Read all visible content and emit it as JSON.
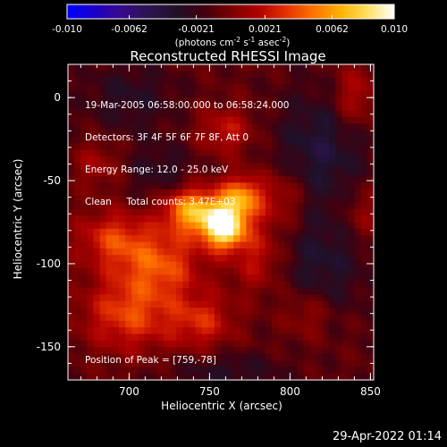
{
  "chart_data": {
    "type": "heatmap",
    "title": "Reconstructed RHESSI Image",
    "xlabel": "Heliocentric X (arcsec)",
    "ylabel": "Heliocentric Y (arcsec)",
    "xlim": [
      662,
      852
    ],
    "ylim": [
      -170,
      20
    ],
    "x_ticks": [
      700,
      750,
      800,
      850
    ],
    "y_ticks": [
      0,
      -50,
      -100,
      -150
    ],
    "peak": [
      759,
      -78
    ],
    "colorbar": {
      "label_html": "(photons cm<sup>-2</sup> s<sup>-1</sup> asec<sup>-2</sup>)",
      "min": -0.01,
      "max": 0.01,
      "ticks": [
        "-0.010",
        "-0.0062",
        "-0.0021",
        "0.0021",
        "0.0062",
        "0.010"
      ],
      "colors": [
        "#0000ff",
        "#1a00c8",
        "#3a0a8a",
        "#2a1550",
        "#201028",
        "#400010",
        "#7a0000",
        "#b00000",
        "#e33000",
        "#ff7000",
        "#ffb000",
        "#ffe060",
        "#ffffff"
      ]
    },
    "annotations": {
      "line1": "19-Mar-2005 06:58:00.000 to 06:58:24.000",
      "line2": "Detectors: 3F 4F 5F 6F 7F 8F, Att 0",
      "line3": "Energy Range: 12.0 - 25.0 keV",
      "line4": "Clean     Total counts: 3.47E+03",
      "peak_label": "Position of Peak = [759,-78]"
    },
    "sources": [
      {
        "x": 759,
        "y": -78,
        "amp": 0.0105,
        "sx": 9,
        "sy": 9
      },
      {
        "x": 740,
        "y": -68,
        "amp": 0.0075,
        "sx": 13,
        "sy": 10
      },
      {
        "x": 770,
        "y": -60,
        "amp": 0.0065,
        "sx": 9,
        "sy": 9
      },
      {
        "x": 720,
        "y": -100,
        "amp": 0.0045,
        "sx": 18,
        "sy": 14
      },
      {
        "x": 690,
        "y": -85,
        "amp": 0.004,
        "sx": 16,
        "sy": 12
      },
      {
        "x": 700,
        "y": -130,
        "amp": 0.0045,
        "sx": 20,
        "sy": 16
      },
      {
        "x": 745,
        "y": -135,
        "amp": 0.0035,
        "sx": 14,
        "sy": 12
      },
      {
        "x": 780,
        "y": -95,
        "amp": 0.003,
        "sx": 12,
        "sy": 16
      },
      {
        "x": 795,
        "y": -60,
        "amp": 0.0025,
        "sx": 10,
        "sy": 12
      },
      {
        "x": 760,
        "y": -20,
        "amp": 0.003,
        "sx": 12,
        "sy": 10
      },
      {
        "x": 680,
        "y": -40,
        "amp": 0.002,
        "sx": 10,
        "sy": 10
      },
      {
        "x": 840,
        "y": 0,
        "amp": 0.003,
        "sx": 10,
        "sy": 14
      },
      {
        "x": 845,
        "y": -70,
        "amp": 0.002,
        "sx": 8,
        "sy": 12
      },
      {
        "x": 810,
        "y": -130,
        "amp": 0.002,
        "sx": 10,
        "sy": 10
      },
      {
        "x": 720,
        "y": -45,
        "amp": -0.002,
        "sx": 14,
        "sy": 12
      },
      {
        "x": 820,
        "y": -30,
        "amp": -0.003,
        "sx": 20,
        "sy": 25
      },
      {
        "x": 820,
        "y": -100,
        "amp": -0.0025,
        "sx": 20,
        "sy": 20
      },
      {
        "x": 700,
        "y": 0,
        "amp": -0.002,
        "sx": 20,
        "sy": 15
      },
      {
        "x": 760,
        "y": -165,
        "amp": -0.002,
        "sx": 25,
        "sy": 8
      }
    ]
  },
  "footer": {
    "datetime": "29-Apr-2022 01:14"
  }
}
